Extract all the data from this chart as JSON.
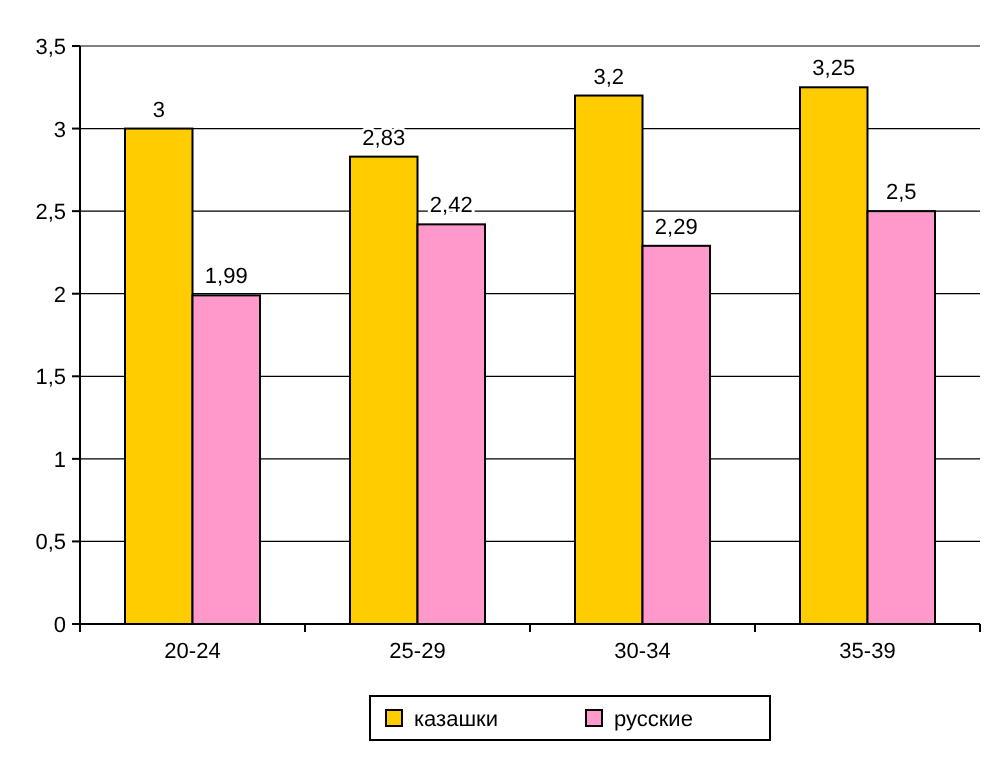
{
  "chart_data": {
    "type": "bar",
    "categories": [
      "20-24",
      "25-29",
      "30-34",
      "35-39"
    ],
    "series": [
      {
        "name": "казашки",
        "color": "#ffcc00",
        "values": [
          3,
          2.83,
          3.2,
          3.25
        ],
        "value_labels": [
          "3",
          "2,83",
          "3,2",
          "3,25"
        ]
      },
      {
        "name": "русские",
        "color": "#ff99cc",
        "values": [
          1.99,
          2.42,
          2.29,
          2.5
        ],
        "value_labels": [
          "1,99",
          "2,42",
          "2,29",
          "2,5"
        ]
      }
    ],
    "ylim": [
      0,
      3.5
    ],
    "yticks": [
      0,
      {
        "value": 0.5,
        "label": "0,5"
      },
      1,
      {
        "value": 1.5,
        "label": "1,5"
      },
      2,
      {
        "value": 2.5,
        "label": "2,5"
      },
      3,
      {
        "value": 3.5,
        "label": "3,5"
      }
    ],
    "grid": "y",
    "legend": "bottom"
  }
}
